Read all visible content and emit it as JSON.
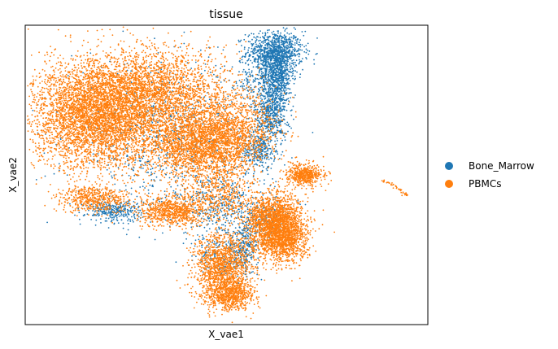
{
  "chart_data": {
    "type": "scatter",
    "title": "tissue",
    "xlabel": "X_vae1",
    "ylabel": "X_vae2",
    "xlim": [
      0,
      100
    ],
    "ylim": [
      0,
      100
    ],
    "ticks": "none",
    "grid": false,
    "legend_placement": "right",
    "series": [
      {
        "name": "Bone_Marrow",
        "color": "#1f77b4",
        "clusters": [
          {
            "cx": 62.0,
            "cy": 91.0,
            "sx": 3.5,
            "sy": 3.5,
            "n": 900
          },
          {
            "cx": 62.5,
            "cy": 83.0,
            "sx": 2.0,
            "sy": 5.0,
            "n": 700
          },
          {
            "cx": 61.0,
            "cy": 70.0,
            "sx": 2.0,
            "sy": 5.0,
            "n": 500
          },
          {
            "cx": 58.0,
            "cy": 58.0,
            "sx": 2.0,
            "sy": 3.0,
            "n": 260
          },
          {
            "cx": 56.0,
            "cy": 80.0,
            "sx": 3.0,
            "sy": 4.0,
            "n": 100
          },
          {
            "cx": 35.0,
            "cy": 62.0,
            "sx": 12.0,
            "sy": 12.0,
            "n": 800
          },
          {
            "cx": 22.0,
            "cy": 38.0,
            "sx": 3.5,
            "sy": 1.8,
            "n": 300
          },
          {
            "cx": 50.0,
            "cy": 38.0,
            "sx": 6.0,
            "sy": 6.0,
            "n": 450
          },
          {
            "cx": 54.0,
            "cy": 25.0,
            "sx": 2.0,
            "sy": 4.0,
            "n": 260
          },
          {
            "cx": 60.0,
            "cy": 35.0,
            "sx": 3.0,
            "sy": 3.0,
            "n": 150
          },
          {
            "cx": 48.0,
            "cy": 22.0,
            "sx": 2.5,
            "sy": 3.0,
            "n": 120
          }
        ]
      },
      {
        "name": "PBMCs",
        "color": "#ff7f0e",
        "clusters": [
          {
            "cx": 18.0,
            "cy": 70.0,
            "sx": 8.0,
            "sy": 9.0,
            "n": 4500
          },
          {
            "cx": 33.0,
            "cy": 78.0,
            "sx": 9.0,
            "sy": 7.0,
            "n": 2200
          },
          {
            "cx": 43.0,
            "cy": 60.0,
            "sx": 6.5,
            "sy": 6.0,
            "n": 2200
          },
          {
            "cx": 52.0,
            "cy": 65.0,
            "sx": 5.5,
            "sy": 6.5,
            "n": 1000
          },
          {
            "cx": 17.0,
            "cy": 42.0,
            "sx": 4.5,
            "sy": 2.2,
            "n": 500
          },
          {
            "cx": 37.0,
            "cy": 38.0,
            "sx": 4.5,
            "sy": 2.5,
            "n": 800
          },
          {
            "cx": 62.0,
            "cy": 34.0,
            "sx": 3.5,
            "sy": 5.0,
            "n": 2000
          },
          {
            "cx": 64.0,
            "cy": 27.0,
            "sx": 3.0,
            "sy": 3.5,
            "n": 700
          },
          {
            "cx": 49.0,
            "cy": 19.0,
            "sx": 3.5,
            "sy": 6.0,
            "n": 1400
          },
          {
            "cx": 51.0,
            "cy": 10.0,
            "sx": 3.0,
            "sy": 2.5,
            "n": 600
          },
          {
            "cx": 69.5,
            "cy": 50.0,
            "sx": 2.3,
            "sy": 1.8,
            "n": 500
          },
          {
            "cx": 48.0,
            "cy": 44.0,
            "sx": 4.0,
            "sy": 4.0,
            "n": 400
          }
        ]
      }
    ],
    "outlier_trail": [
      {
        "x": 89.0,
        "y": 47.8
      },
      {
        "x": 90.0,
        "y": 47.4
      },
      {
        "x": 91.0,
        "y": 46.8
      },
      {
        "x": 92.0,
        "y": 46.0
      },
      {
        "x": 93.0,
        "y": 45.0
      },
      {
        "x": 93.8,
        "y": 44.0
      },
      {
        "x": 94.5,
        "y": 43.2
      }
    ]
  }
}
